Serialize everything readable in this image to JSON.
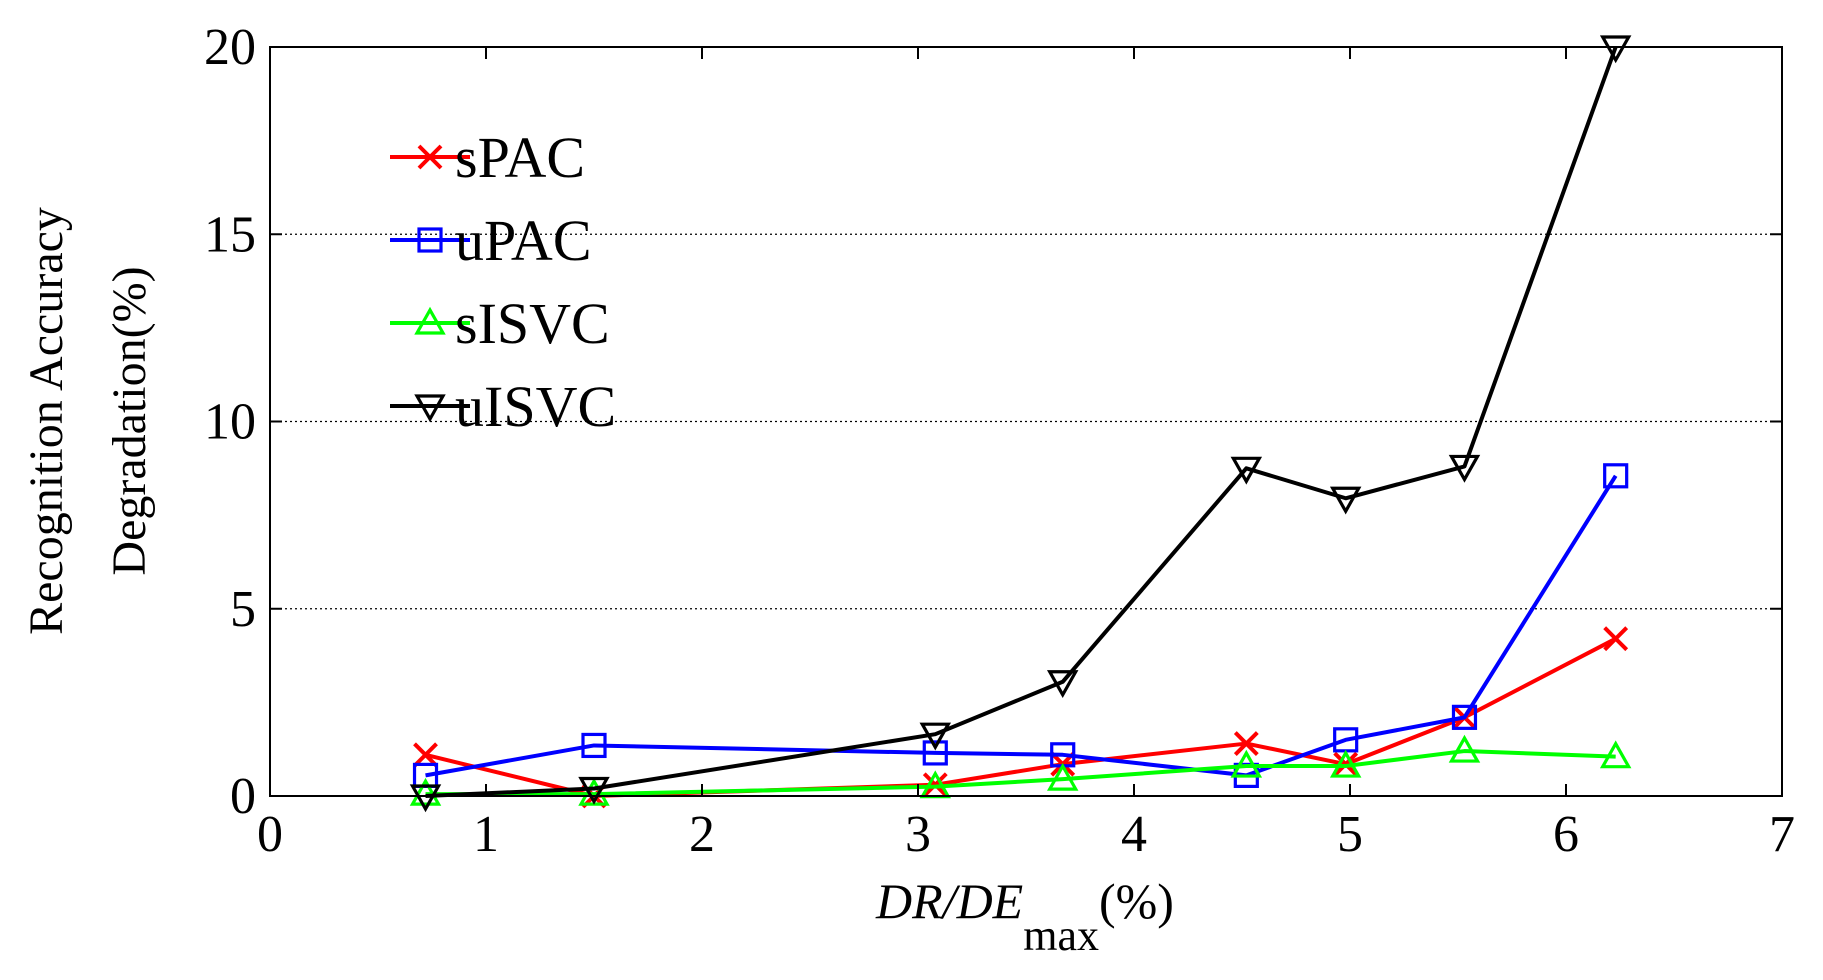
{
  "chart_data": {
    "type": "line",
    "xlabel": {
      "italic": "DR/DE",
      "sub": "max",
      "tail": "(%)"
    },
    "ylabel": [
      "Recognition Accuracy",
      "Degradation(%)"
    ],
    "xlim": [
      0,
      7
    ],
    "ylim": [
      0,
      20
    ],
    "xticks": [
      0,
      1,
      2,
      3,
      4,
      5,
      6,
      7
    ],
    "yticks": [
      0,
      5,
      10,
      15,
      20
    ],
    "grid": "horizontal-dotted",
    "legend": "top-left",
    "series": [
      {
        "name": "sPAC",
        "color": "#ff0000",
        "marker": "x",
        "x": [
          0.72,
          1.5,
          3.08,
          3.67,
          4.52,
          4.98,
          5.53,
          6.23
        ],
        "y": [
          1.1,
          0.0,
          0.3,
          0.85,
          1.4,
          0.85,
          2.1,
          4.2
        ]
      },
      {
        "name": "uPAC",
        "color": "#0000ff",
        "marker": "square",
        "x": [
          0.72,
          1.5,
          3.08,
          3.67,
          4.52,
          4.98,
          5.53,
          6.23
        ],
        "y": [
          0.55,
          1.35,
          1.15,
          1.1,
          0.55,
          1.5,
          2.1,
          8.55
        ]
      },
      {
        "name": "sISVC",
        "color": "#00ff00",
        "marker": "triangle-up",
        "x": [
          0.72,
          1.5,
          3.08,
          3.67,
          4.52,
          4.98,
          5.53,
          6.23
        ],
        "y": [
          0.05,
          0.05,
          0.25,
          0.45,
          0.8,
          0.8,
          1.2,
          1.05
        ]
      },
      {
        "name": "uISVC",
        "color": "#000000",
        "marker": "triangle-down",
        "x": [
          0.72,
          1.5,
          3.08,
          3.67,
          4.52,
          4.98,
          5.53,
          6.23
        ],
        "y": [
          0.0,
          0.2,
          1.65,
          3.05,
          8.75,
          7.95,
          8.8,
          20.0
        ]
      }
    ]
  }
}
